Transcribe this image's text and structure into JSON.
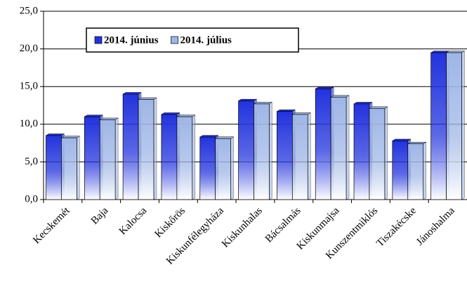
{
  "chart_data": {
    "type": "bar",
    "categories": [
      "Kecskemét",
      "Baja",
      "Kalocsa",
      "Kiskőrös",
      "Kiskunfélegyháza",
      "Kiskunhalas",
      "Bácsalmás",
      "Kiskunmajsa",
      "Kunszentmiklós",
      "Tiszakécske",
      "Jánoshalma"
    ],
    "series": [
      {
        "name": "2014. június",
        "color": "#2233dd",
        "values": [
          8.5,
          11.0,
          14.0,
          11.3,
          8.3,
          13.1,
          11.7,
          14.7,
          12.7,
          7.8,
          19.5
        ]
      },
      {
        "name": "2014. július",
        "color": "#9fb6e6",
        "values": [
          8.2,
          10.6,
          13.3,
          11.0,
          8.1,
          12.7,
          11.3,
          13.6,
          12.1,
          7.4,
          19.5
        ]
      }
    ],
    "ylim": [
      0,
      25
    ],
    "yticks": [
      {
        "value": 0,
        "label": "0,0"
      },
      {
        "value": 5,
        "label": "5,0"
      },
      {
        "value": 10,
        "label": "10,0"
      },
      {
        "value": 15,
        "label": "15,0"
      },
      {
        "value": 20,
        "label": "20,0"
      },
      {
        "value": 25,
        "label": "25,0"
      }
    ],
    "grid": true,
    "legend": "top-left"
  }
}
